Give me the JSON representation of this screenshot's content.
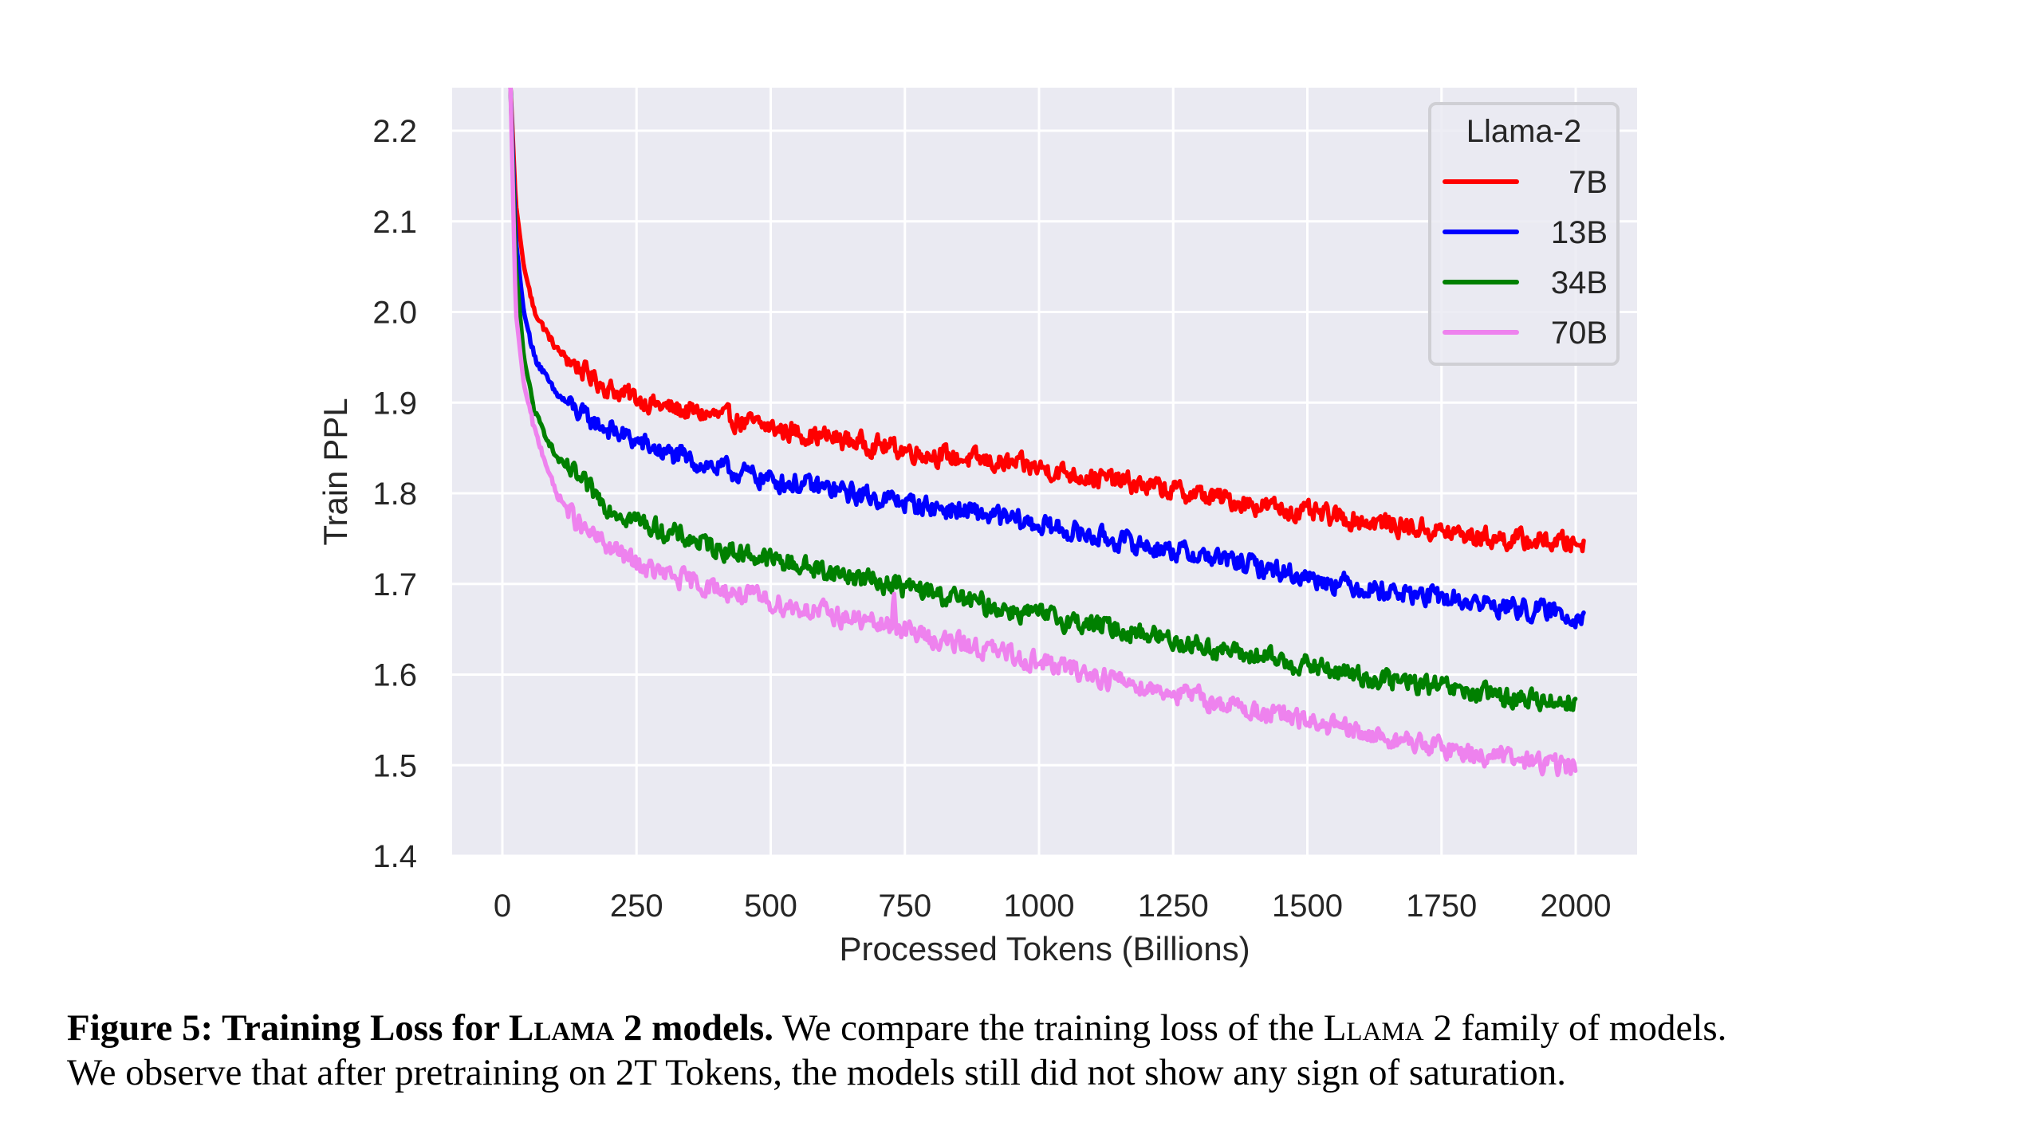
{
  "chart_data": {
    "type": "line",
    "title": "",
    "xlabel": "Processed Tokens (Billions)",
    "ylabel": "Train PPL",
    "xlim": [
      -95,
      2110
    ],
    "ylim": [
      1.4,
      2.25
    ],
    "xticks": [
      0,
      250,
      500,
      750,
      1000,
      1250,
      1500,
      1750,
      2000
    ],
    "xtick_labels": [
      "0",
      "250",
      "500",
      "750",
      "1000",
      "1250",
      "1500",
      "1750",
      "2000"
    ],
    "yticks": [
      1.4,
      1.5,
      1.6,
      1.7,
      1.8,
      1.9,
      2.0,
      2.1,
      2.2
    ],
    "ytick_labels": [
      "1.4",
      "1.5",
      "1.6",
      "1.7",
      "1.8",
      "1.9",
      "2.0",
      "2.1",
      "2.2"
    ],
    "grid": true,
    "legend": {
      "title": "Llama-2",
      "placement": "top-right"
    },
    "series": [
      {
        "name": "7B",
        "color": "#ff0000",
        "noise": 0.006,
        "x": [
          15,
          25,
          40,
          60,
          100,
          150,
          200,
          250,
          300,
          400,
          500,
          600,
          700,
          800,
          900,
          1000,
          1100,
          1200,
          1300,
          1400,
          1500,
          1600,
          1700,
          1800,
          1900,
          2015
        ],
        "y": [
          2.25,
          2.12,
          2.05,
          2.0,
          1.96,
          1.935,
          1.915,
          1.905,
          1.895,
          1.885,
          1.872,
          1.862,
          1.853,
          1.843,
          1.835,
          1.828,
          1.818,
          1.808,
          1.798,
          1.788,
          1.778,
          1.77,
          1.762,
          1.753,
          1.748,
          1.745
        ]
      },
      {
        "name": "13B",
        "color": "#0000ff",
        "noise": 0.006,
        "x": [
          15,
          25,
          40,
          60,
          100,
          150,
          200,
          250,
          300,
          400,
          500,
          600,
          700,
          800,
          900,
          1000,
          1100,
          1200,
          1300,
          1400,
          1500,
          1600,
          1700,
          1800,
          1900,
          2015
        ],
        "y": [
          2.25,
          2.08,
          2.0,
          1.95,
          1.91,
          1.885,
          1.87,
          1.857,
          1.845,
          1.828,
          1.815,
          1.805,
          1.795,
          1.785,
          1.776,
          1.765,
          1.753,
          1.742,
          1.732,
          1.72,
          1.708,
          1.697,
          1.688,
          1.68,
          1.672,
          1.665
        ]
      },
      {
        "name": "34B",
        "color": "#008000",
        "noise": 0.006,
        "x": [
          15,
          25,
          40,
          60,
          100,
          150,
          200,
          250,
          300,
          400,
          500,
          600,
          700,
          800,
          900,
          1000,
          1100,
          1200,
          1300,
          1400,
          1500,
          1600,
          1700,
          1800,
          1900,
          2000
        ],
        "y": [
          2.25,
          2.05,
          1.95,
          1.89,
          1.84,
          1.81,
          1.785,
          1.77,
          1.758,
          1.74,
          1.727,
          1.715,
          1.703,
          1.69,
          1.677,
          1.665,
          1.655,
          1.645,
          1.632,
          1.62,
          1.61,
          1.598,
          1.59,
          1.58,
          1.573,
          1.57
        ]
      },
      {
        "name": "70B",
        "color": "#ee82ee",
        "noise": 0.006,
        "x": [
          15,
          25,
          40,
          60,
          100,
          150,
          200,
          250,
          300,
          400,
          500,
          600,
          700,
          725,
          730,
          735,
          800,
          900,
          1000,
          1100,
          1200,
          1300,
          1400,
          1500,
          1600,
          1700,
          1800,
          1900,
          2000
        ],
        "y": [
          2.25,
          2.0,
          1.92,
          1.87,
          1.8,
          1.76,
          1.74,
          1.722,
          1.71,
          1.695,
          1.68,
          1.668,
          1.655,
          1.652,
          1.69,
          1.652,
          1.64,
          1.628,
          1.614,
          1.6,
          1.587,
          1.574,
          1.56,
          1.548,
          1.535,
          1.524,
          1.514,
          1.505,
          1.498
        ]
      }
    ]
  },
  "caption": {
    "label": "Figure 5: Training Loss for ",
    "label_sc": "Llama",
    "label_end": " 2 models.",
    "text1": " We compare the training loss of the ",
    "text_sc": "Llama",
    "text2": " 2 family of models.",
    "line2": "We observe that after pretraining on 2T Tokens, the models still did not show any sign of saturation."
  }
}
